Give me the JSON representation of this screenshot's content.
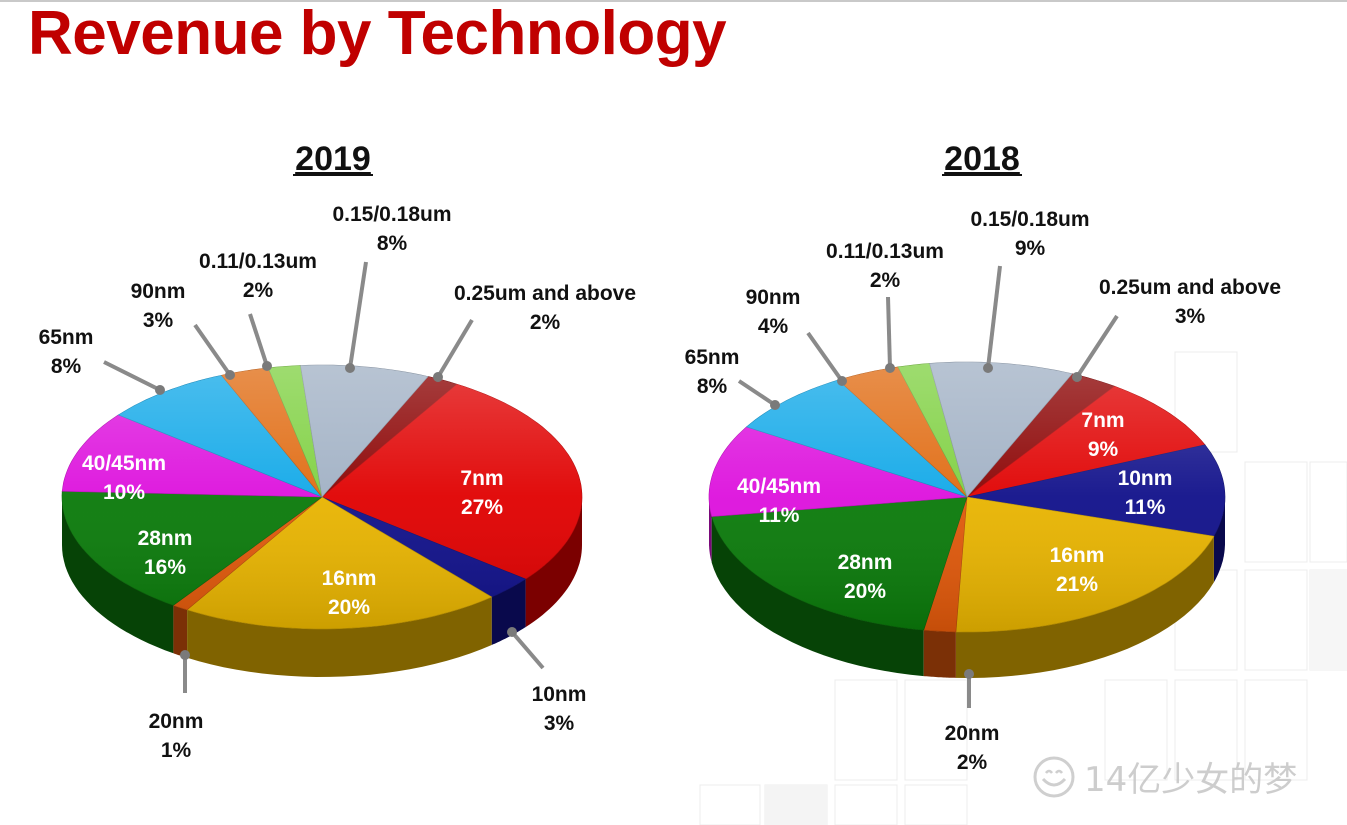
{
  "page": {
    "title": "Revenue by Technology"
  },
  "watermark": {
    "text": "14亿少女的梦",
    "icon": "smile-logo-icon"
  },
  "colors": {
    "title": "#c00000",
    "7nm": "#e00000",
    "10nm": "#10108a",
    "16nm": "#e8b400",
    "20nm": "#e0580a",
    "28nm": "#0a7a0a",
    "40/45nm": "#dd10dd",
    "65nm": "#10a8e8",
    "90nm": "#e06a10",
    "0.11/0.13um": "#7ed040",
    "0.15/0.18um": "#a0b0c4",
    "0.25um and above": "#8a0000"
  },
  "chart_data": [
    {
      "type": "pie",
      "title": "2019",
      "slices": [
        {
          "label": "7nm",
          "value": 27,
          "pct_text": "27%"
        },
        {
          "label": "10nm",
          "value": 3,
          "pct_text": "3%"
        },
        {
          "label": "16nm",
          "value": 20,
          "pct_text": "20%"
        },
        {
          "label": "20nm",
          "value": 1,
          "pct_text": "1%"
        },
        {
          "label": "28nm",
          "value": 16,
          "pct_text": "16%"
        },
        {
          "label": "40/45nm",
          "value": 10,
          "pct_text": "10%"
        },
        {
          "label": "65nm",
          "value": 8,
          "pct_text": "8%"
        },
        {
          "label": "90nm",
          "value": 3,
          "pct_text": "3%"
        },
        {
          "label": "0.11/0.13um",
          "value": 2,
          "pct_text": "2%"
        },
        {
          "label": "0.15/0.18um",
          "value": 8,
          "pct_text": "8%"
        },
        {
          "label": "0.25um and above",
          "value": 2,
          "pct_text": "2%"
        }
      ]
    },
    {
      "type": "pie",
      "title": "2018",
      "slices": [
        {
          "label": "7nm",
          "value": 9,
          "pct_text": "9%"
        },
        {
          "label": "10nm",
          "value": 11,
          "pct_text": "11%"
        },
        {
          "label": "16nm",
          "value": 21,
          "pct_text": "21%"
        },
        {
          "label": "20nm",
          "value": 2,
          "pct_text": "2%"
        },
        {
          "label": "28nm",
          "value": 20,
          "pct_text": "20%"
        },
        {
          "label": "40/45nm",
          "value": 11,
          "pct_text": "11%"
        },
        {
          "label": "65nm",
          "value": 8,
          "pct_text": "8%"
        },
        {
          "label": "90nm",
          "value": 4,
          "pct_text": "4%"
        },
        {
          "label": "0.11/0.13um",
          "value": 2,
          "pct_text": "2%"
        },
        {
          "label": "0.15/0.18um",
          "value": 9,
          "pct_text": "9%"
        },
        {
          "label": "0.25um and above",
          "value": 3,
          "pct_text": "3%"
        }
      ]
    }
  ]
}
